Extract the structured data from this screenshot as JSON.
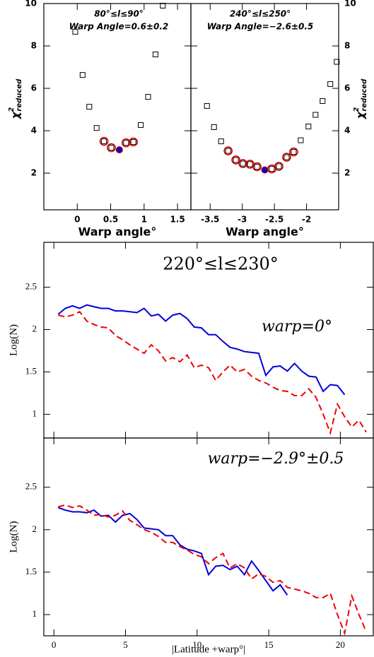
{
  "chart_data": [
    {
      "type": "scatter",
      "xlabel": "Warp angle°",
      "ylabel": {
        "symbol": "χ",
        "sup": "2",
        "sub": "reduced"
      },
      "yaxis_side": "left",
      "annotations": [
        "80°≤l≤90°",
        "Warp Angle=0.6±0.2"
      ],
      "xlim": [
        -0.5,
        1.7
      ],
      "ylim": [
        0.27,
        10
      ],
      "xticks": [
        0,
        0.5,
        1,
        1.5
      ],
      "yticks": [
        2,
        4,
        6,
        8,
        10
      ],
      "series": [
        {
          "marker": "square",
          "color": "#000000",
          "x": [
            -0.03,
            0.08,
            0.18,
            0.29,
            0.95,
            1.06,
            1.17,
            1.28
          ],
          "values": [
            8.67,
            6.63,
            5.13,
            4.13,
            4.27,
            5.6,
            7.6,
            9.9
          ]
        },
        {
          "marker": "circle",
          "color": "#cc0000",
          "x": [
            0.4,
            0.51,
            0.73,
            0.84
          ],
          "values": [
            3.5,
            3.2,
            3.43,
            3.47
          ]
        },
        {
          "marker": "filled",
          "color": "#0000cc",
          "x": [
            0.63
          ],
          "values": [
            3.1
          ]
        }
      ]
    },
    {
      "type": "scatter",
      "xlabel": "Warp angle°",
      "ylabel": {
        "symbol": "χ",
        "sup": "2",
        "sub": "reduced"
      },
      "yaxis_side": "right",
      "annotations": [
        "240°≤l≤250°",
        "Warp Angle=−2.6±0.5"
      ],
      "xlim": [
        -3.8,
        -1.5
      ],
      "ylim": [
        0.27,
        10
      ],
      "xticks": [
        -3.5,
        -3,
        -2.5,
        -2
      ],
      "yticks": [
        2,
        4,
        6,
        8,
        10
      ],
      "series": [
        {
          "marker": "square",
          "color": "#000000",
          "x": [
            -3.55,
            -3.44,
            -3.33,
            -2.09,
            -1.97,
            -1.86,
            -1.75,
            -1.63,
            -1.53
          ],
          "values": [
            5.17,
            4.17,
            3.5,
            3.55,
            4.2,
            4.75,
            5.4,
            6.2,
            7.25
          ]
        },
        {
          "marker": "circle",
          "color": "#cc0000",
          "x": [
            -3.22,
            -3.1,
            -2.99,
            -2.88,
            -2.77,
            -2.54,
            -2.43,
            -2.31,
            -2.2
          ],
          "values": [
            3.05,
            2.62,
            2.45,
            2.42,
            2.3,
            2.2,
            2.32,
            2.75,
            3.0
          ]
        },
        {
          "marker": "filled",
          "color": "#0000cc",
          "x": [
            -2.65
          ],
          "values": [
            2.15
          ]
        }
      ]
    },
    {
      "type": "line",
      "ylabel": "Log(N)",
      "annotations": [
        "220°≤l≤230°",
        "warp=0°"
      ],
      "xlim": [
        -0.7,
        22.3
      ],
      "ylim": [
        0.72,
        3.03
      ],
      "xticks": [
        0,
        5,
        10,
        15,
        20
      ],
      "yticks": [
        1,
        1.5,
        2,
        2.5
      ],
      "series": [
        {
          "color": "#0000dd",
          "dash": false,
          "x": [
            0.3,
            0.8,
            1.3,
            1.8,
            2.3,
            2.8,
            3.3,
            3.8,
            4.3,
            4.8,
            5.3,
            5.8,
            6.3,
            6.8,
            7.3,
            7.8,
            8.3,
            8.8,
            9.3,
            9.8,
            10.3,
            10.8,
            11.3,
            11.8,
            12.3,
            12.8,
            13.3,
            13.8,
            14.3,
            14.8,
            15.3,
            15.8,
            16.3,
            16.8,
            17.3,
            17.8,
            18.3,
            18.8,
            19.3,
            19.8,
            20.3
          ],
          "values": [
            2.18,
            2.25,
            2.28,
            2.25,
            2.29,
            2.27,
            2.25,
            2.25,
            2.22,
            2.22,
            2.21,
            2.2,
            2.25,
            2.16,
            2.18,
            2.1,
            2.17,
            2.19,
            2.13,
            2.03,
            2.02,
            1.94,
            1.94,
            1.86,
            1.79,
            1.77,
            1.74,
            1.73,
            1.72,
            1.46,
            1.56,
            1.57,
            1.51,
            1.6,
            1.51,
            1.45,
            1.44,
            1.27,
            1.35,
            1.34,
            1.23
          ]
        },
        {
          "color": "#ee0000",
          "dash": true,
          "x": [
            0.3,
            0.8,
            1.3,
            1.8,
            2.3,
            2.8,
            3.3,
            3.8,
            4.3,
            4.8,
            5.3,
            5.8,
            6.3,
            6.8,
            7.3,
            7.8,
            8.3,
            8.8,
            9.3,
            9.8,
            10.3,
            10.8,
            11.3,
            11.8,
            12.3,
            12.8,
            13.3,
            13.8,
            14.3,
            14.8,
            15.3,
            15.8,
            16.3,
            16.8,
            17.3,
            17.8,
            18.3,
            18.8,
            19.3,
            19.8,
            20.3,
            20.8,
            21.3,
            21.8
          ],
          "values": [
            2.17,
            2.15,
            2.17,
            2.21,
            2.1,
            2.06,
            2.03,
            2.02,
            1.93,
            1.88,
            1.82,
            1.77,
            1.72,
            1.82,
            1.75,
            1.63,
            1.67,
            1.62,
            1.7,
            1.55,
            1.58,
            1.55,
            1.4,
            1.5,
            1.58,
            1.5,
            1.53,
            1.45,
            1.4,
            1.37,
            1.32,
            1.28,
            1.27,
            1.22,
            1.22,
            1.3,
            1.2,
            1.0,
            0.78,
            1.12,
            0.97,
            0.85,
            0.93,
            0.79
          ]
        }
      ]
    },
    {
      "type": "line",
      "ylabel": "Log(N)",
      "xlabel": "|Latitude +warp°|",
      "annotations": [
        "warp=−2.9°±0.5"
      ],
      "xlim": [
        -0.7,
        22.3
      ],
      "ylim": [
        0.75,
        3.08
      ],
      "xticks": [
        0,
        5,
        10,
        15,
        20
      ],
      "yticks": [
        1,
        1.5,
        2,
        2.5
      ],
      "series": [
        {
          "color": "#0000dd",
          "dash": false,
          "x": [
            0.3,
            0.8,
            1.3,
            1.8,
            2.3,
            2.8,
            3.3,
            3.8,
            4.3,
            4.8,
            5.3,
            5.8,
            6.3,
            6.8,
            7.3,
            7.8,
            8.3,
            8.8,
            9.3,
            9.8,
            10.3,
            10.8,
            11.3,
            11.8,
            12.3,
            12.8,
            13.3,
            13.8,
            14.3,
            14.8,
            15.3,
            15.8,
            16.3
          ],
          "values": [
            2.26,
            2.23,
            2.21,
            2.21,
            2.2,
            2.23,
            2.16,
            2.17,
            2.09,
            2.17,
            2.19,
            2.12,
            2.02,
            2.01,
            2.0,
            1.93,
            1.93,
            1.82,
            1.77,
            1.75,
            1.72,
            1.47,
            1.57,
            1.58,
            1.53,
            1.57,
            1.47,
            1.63,
            1.52,
            1.4,
            1.28,
            1.35,
            1.23
          ]
        },
        {
          "color": "#ee0000",
          "dash": true,
          "x": [
            0.3,
            0.8,
            1.3,
            1.8,
            2.3,
            2.8,
            3.3,
            3.8,
            4.3,
            4.8,
            5.3,
            5.8,
            6.3,
            6.8,
            7.3,
            7.8,
            8.3,
            8.8,
            9.3,
            9.8,
            10.3,
            10.8,
            11.3,
            11.8,
            12.3,
            12.8,
            13.3,
            13.8,
            14.3,
            14.8,
            15.3,
            15.8,
            16.3,
            16.8,
            17.3,
            17.8,
            18.3,
            18.8,
            19.3,
            19.8,
            20.3,
            20.8,
            21.3,
            21.8
          ],
          "values": [
            2.27,
            2.29,
            2.26,
            2.28,
            2.23,
            2.17,
            2.18,
            2.15,
            2.17,
            2.22,
            2.11,
            2.06,
            2.0,
            1.97,
            1.92,
            1.85,
            1.85,
            1.8,
            1.76,
            1.71,
            1.68,
            1.6,
            1.67,
            1.72,
            1.55,
            1.6,
            1.55,
            1.42,
            1.48,
            1.45,
            1.38,
            1.4,
            1.32,
            1.3,
            1.28,
            1.25,
            1.2,
            1.2,
            1.25,
            1.0,
            0.78,
            1.22,
            1.0,
            0.8
          ]
        }
      ]
    }
  ]
}
